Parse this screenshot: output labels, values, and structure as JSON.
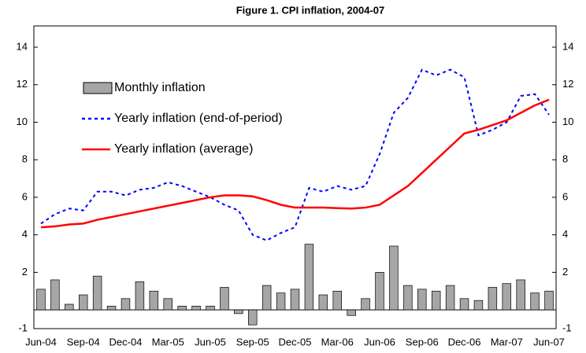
{
  "chart_data": {
    "type": "bar-line",
    "title": "Figure 1. CPI inflation, 2004-07",
    "categories": [
      "Jun-04",
      null,
      null,
      "Sep-04",
      null,
      null,
      "Dec-04",
      null,
      null,
      "Mar-05",
      null,
      null,
      "Jun-05",
      null,
      null,
      "Sep-05",
      null,
      null,
      "Dec-05",
      null,
      null,
      "Mar-06",
      null,
      null,
      "Jun-06",
      null,
      null,
      "Sep-06",
      null,
      null,
      "Dec-06",
      null,
      null,
      "Mar-07",
      null,
      null,
      "Jun-07"
    ],
    "series": [
      {
        "name": "Monthly inflation",
        "type": "bar",
        "color": "#a6a6a6",
        "values": [
          1.1,
          1.6,
          0.3,
          0.8,
          1.8,
          0.2,
          0.6,
          1.5,
          1.0,
          0.6,
          0.2,
          0.2,
          0.2,
          1.2,
          -0.2,
          -0.8,
          1.3,
          0.9,
          1.1,
          3.5,
          0.8,
          1.0,
          -0.3,
          0.6,
          2.0,
          3.4,
          1.3,
          1.1,
          1.0,
          1.3,
          0.6,
          0.5,
          1.2,
          1.4,
          1.6,
          0.9,
          1.0
        ]
      },
      {
        "name": "Yearly inflation (end-of-period)",
        "type": "dotted-line",
        "color": "#0000ff",
        "values": [
          4.6,
          5.1,
          5.4,
          5.3,
          6.3,
          6.3,
          6.1,
          6.4,
          6.5,
          6.8,
          6.6,
          6.3,
          6.0,
          5.6,
          5.3,
          4.0,
          3.7,
          4.1,
          4.4,
          6.5,
          6.3,
          6.6,
          6.4,
          6.6,
          8.3,
          10.5,
          11.3,
          12.8,
          12.5,
          12.8,
          12.4,
          9.3,
          9.6,
          10.0,
          11.4,
          11.5,
          10.4
        ]
      },
      {
        "name": "Yearly inflation (average)",
        "type": "line",
        "color": "#ff0000",
        "values": [
          4.4,
          4.45,
          4.55,
          4.6,
          4.8,
          4.95,
          5.1,
          5.25,
          5.4,
          5.55,
          5.7,
          5.85,
          6.0,
          6.1,
          6.1,
          6.05,
          5.85,
          5.6,
          5.45,
          5.45,
          5.45,
          5.42,
          5.4,
          5.45,
          5.6,
          6.1,
          6.6,
          7.3,
          8.0,
          8.7,
          9.4,
          9.6,
          9.85,
          10.1,
          10.5,
          10.9,
          11.2
        ]
      }
    ],
    "ylim": [
      -1,
      14
    ],
    "yticks": [
      -1,
      2,
      4,
      6,
      8,
      10,
      12,
      14
    ],
    "y2lim": [
      -1,
      14
    ],
    "y2ticks": [
      -1,
      2,
      4,
      6,
      8,
      10,
      12,
      14
    ]
  }
}
